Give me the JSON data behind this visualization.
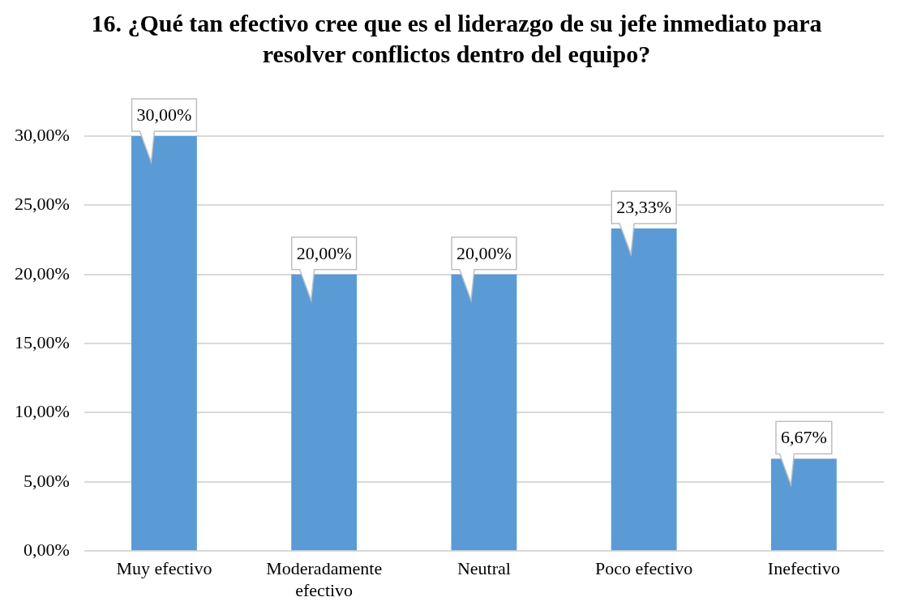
{
  "chart_data": {
    "type": "bar",
    "title": "16. ¿Qué tan efectivo cree que es el liderazgo de su jefe inmediato para resolver conflictos dentro del equipo?",
    "categories": [
      "Muy efectivo",
      "Moderadamente efectivo",
      "Neutral",
      "Poco efectivo",
      "Inefectivo"
    ],
    "values": [
      30,
      20,
      20,
      23.33,
      6.67
    ],
    "value_labels": [
      "30,00%",
      "20,00%",
      "20,00%",
      "23,33%",
      "6,67%"
    ],
    "color": "#5b9bd5",
    "ylim": [
      0,
      30
    ],
    "yticks": [
      {
        "value": 0,
        "label": "0,00%"
      },
      {
        "value": 5,
        "label": "5,00%"
      },
      {
        "value": 10,
        "label": "10,00%"
      },
      {
        "value": 15,
        "label": "15,00%"
      },
      {
        "value": 20,
        "label": "20,00%"
      },
      {
        "value": 25,
        "label": "25,00%"
      },
      {
        "value": 30,
        "label": "30,00%"
      }
    ],
    "grid": "y"
  }
}
